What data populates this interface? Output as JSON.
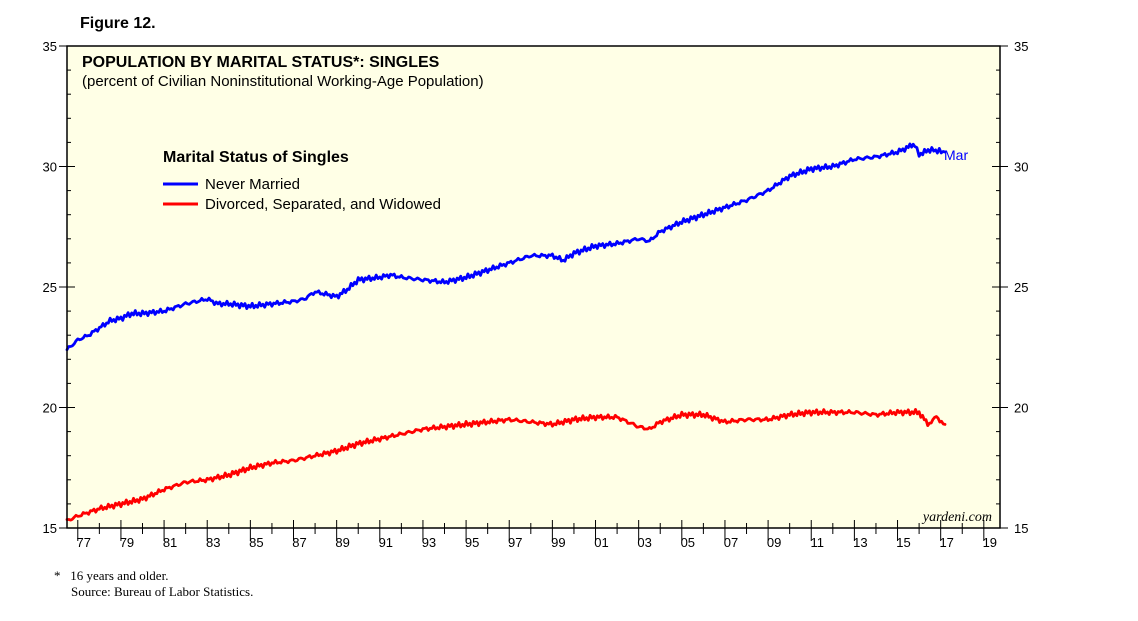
{
  "figure_label": "Figure 12.",
  "footnote": {
    "asterisk": "*",
    "note": "16 years and older.",
    "source": "Source: Bureau of Labor Statistics."
  },
  "colors": {
    "background": "#FFFFE6",
    "never_married": "#0000FF",
    "divorced": "#FF0000"
  },
  "chart_data": {
    "type": "line",
    "title": "POPULATION BY MARITAL STATUS*: SINGLES",
    "subtitle": "(percent of Civilian Noninstitutional Working-Age Population)",
    "legend_title": "Marital Status of Singles",
    "watermark": "yardeni.com",
    "end_label": "Mar",
    "xlim": [
      1976.5,
      2019.75
    ],
    "ylim": [
      15,
      35
    ],
    "y_ticks": [
      15,
      20,
      25,
      30,
      35
    ],
    "x_tick_labels": [
      "77",
      "79",
      "81",
      "83",
      "85",
      "87",
      "89",
      "91",
      "93",
      "95",
      "97",
      "99",
      "01",
      "03",
      "05",
      "07",
      "09",
      "11",
      "13",
      "15",
      "17",
      "19"
    ],
    "x_tick_years": [
      1977,
      1979,
      1981,
      1983,
      1985,
      1987,
      1989,
      1991,
      1993,
      1995,
      1997,
      1999,
      2001,
      2003,
      2005,
      2007,
      2009,
      2011,
      2013,
      2015,
      2017,
      2019
    ],
    "series": [
      {
        "name": "Never Married",
        "color": "#0000FF",
        "x": [
          1976.5,
          1977,
          1977.5,
          1978,
          1978.5,
          1979,
          1979.5,
          1980,
          1981,
          1982,
          1983,
          1983.5,
          1984,
          1985,
          1986,
          1987,
          1987.5,
          1988,
          1988.5,
          1989,
          1989.5,
          1990,
          1991,
          1991.5,
          1992,
          1993,
          1994,
          1994.5,
          1995,
          1996,
          1997,
          1998,
          1999,
          1999.5,
          2000,
          2001,
          2002,
          2003,
          2003.5,
          2004,
          2005,
          2006,
          2007,
          2008,
          2009,
          2010,
          2011,
          2012,
          2013,
          2014,
          2015,
          2015.5,
          2015.8,
          2016,
          2016.5,
          2017.2
        ],
        "values": [
          22.4,
          22.8,
          23.0,
          23.3,
          23.6,
          23.7,
          23.9,
          23.9,
          24.0,
          24.3,
          24.5,
          24.3,
          24.3,
          24.2,
          24.3,
          24.4,
          24.5,
          24.8,
          24.7,
          24.6,
          24.9,
          25.3,
          25.4,
          25.5,
          25.4,
          25.3,
          25.2,
          25.3,
          25.4,
          25.7,
          26.0,
          26.3,
          26.3,
          26.1,
          26.4,
          26.7,
          26.8,
          27.0,
          26.9,
          27.3,
          27.7,
          28.0,
          28.3,
          28.6,
          29.0,
          29.6,
          29.9,
          30.0,
          30.3,
          30.4,
          30.6,
          30.8,
          30.9,
          30.5,
          30.7,
          30.6
        ]
      },
      {
        "name": "Divorced, Separated, and Widowed",
        "color": "#FF0000",
        "x": [
          1976.5,
          1977,
          1978,
          1979,
          1980,
          1981,
          1982,
          1983,
          1984,
          1985,
          1986,
          1987,
          1988,
          1989,
          1990,
          1991,
          1992,
          1993,
          1994,
          1995,
          1996,
          1997,
          1998,
          1999,
          2000,
          2001,
          2002,
          2003,
          2003.5,
          2004,
          2005,
          2006,
          2007,
          2008,
          2009,
          2010,
          2011,
          2012,
          2013,
          2014,
          2015,
          2016,
          2016.4,
          2016.8,
          2017.2
        ],
        "values": [
          15.3,
          15.5,
          15.8,
          16.0,
          16.2,
          16.6,
          16.9,
          17.0,
          17.2,
          17.5,
          17.7,
          17.8,
          18.0,
          18.2,
          18.5,
          18.7,
          18.9,
          19.1,
          19.2,
          19.3,
          19.4,
          19.5,
          19.4,
          19.3,
          19.5,
          19.6,
          19.6,
          19.2,
          19.1,
          19.4,
          19.7,
          19.7,
          19.4,
          19.5,
          19.5,
          19.7,
          19.8,
          19.8,
          19.8,
          19.7,
          19.8,
          19.8,
          19.3,
          19.6,
          19.3
        ]
      }
    ]
  }
}
